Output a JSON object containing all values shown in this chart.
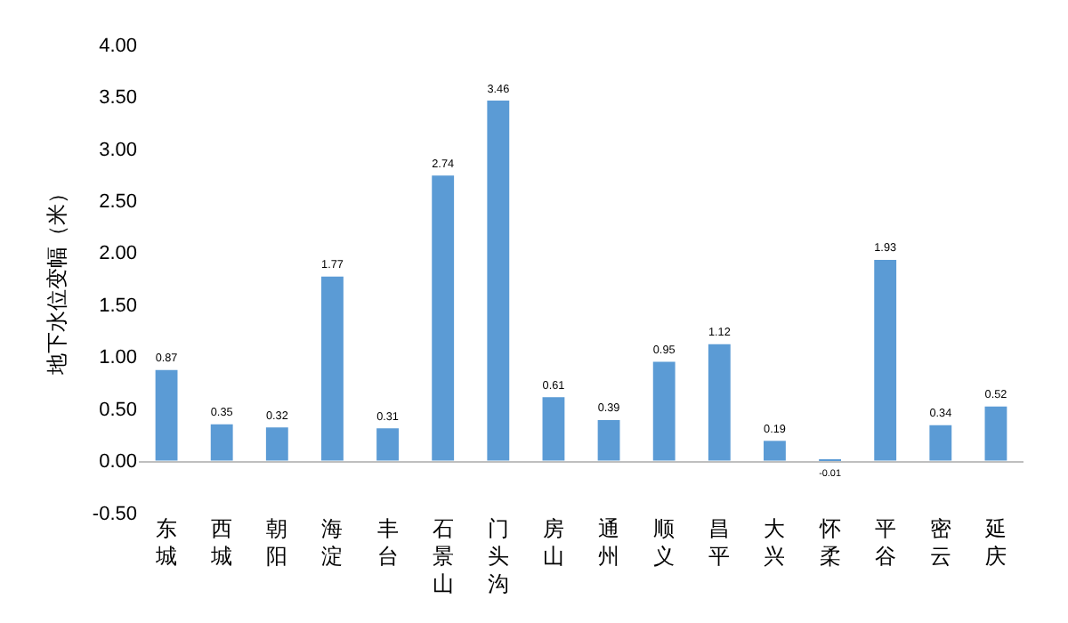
{
  "chart_data": {
    "type": "bar",
    "ylabel": "地下水位变幅（米）",
    "categories": [
      "东城",
      "西城",
      "朝阳",
      "海淀",
      "丰台",
      "石景山",
      "门头沟",
      "房山",
      "通州",
      "顺义",
      "昌平",
      "大兴",
      "怀柔",
      "平谷",
      "密云",
      "延庆"
    ],
    "values": [
      0.87,
      0.35,
      0.32,
      1.77,
      0.31,
      2.74,
      3.46,
      0.61,
      0.39,
      0.95,
      1.12,
      0.19,
      -0.01,
      1.93,
      0.34,
      0.52
    ],
    "color": "#5b9bd5",
    "data_labels": true,
    "ylim": [
      -0.5,
      4
    ],
    "yticks": [
      {
        "value": -0.5,
        "label": "-0.50"
      },
      {
        "value": 0,
        "label": "0.00"
      },
      {
        "value": 0.5,
        "label": "0.50"
      },
      {
        "value": 1,
        "label": "1.00"
      },
      {
        "value": 1.5,
        "label": "1.50"
      },
      {
        "value": 2,
        "label": "2.00"
      },
      {
        "value": 2.5,
        "label": "2.50"
      },
      {
        "value": 3,
        "label": "3.00"
      },
      {
        "value": 3.5,
        "label": "3.50"
      },
      {
        "value": 4,
        "label": "4.00"
      }
    ]
  }
}
